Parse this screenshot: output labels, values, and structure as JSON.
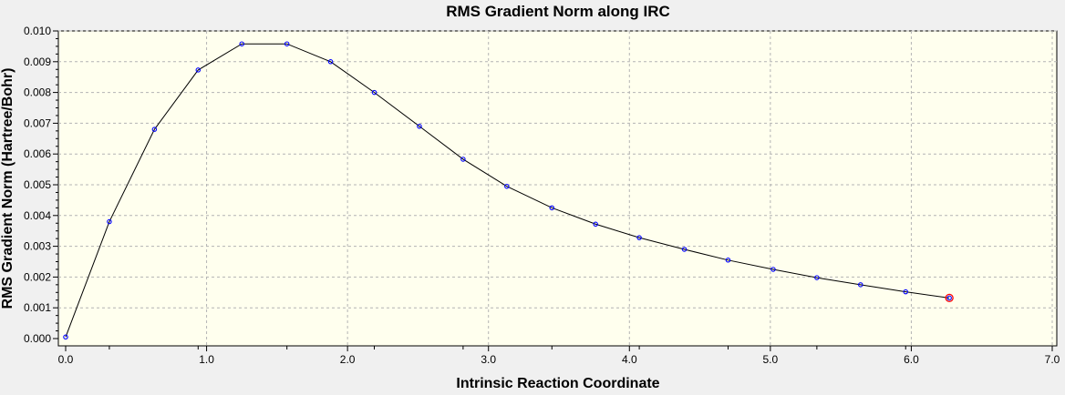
{
  "chart_data": {
    "type": "line",
    "title": "RMS Gradient Norm along IRC",
    "xlabel": "Intrinsic Reaction Coordinate",
    "ylabel": "RMS Gradient Norm (Hartree/Bohr)",
    "xlim": [
      0.0,
      7.0
    ],
    "ylim": [
      0.0,
      0.01
    ],
    "x_ticks": [
      "0.0",
      "1.0",
      "2.0",
      "3.0",
      "4.0",
      "5.0",
      "6.0",
      "7.0"
    ],
    "y_ticks": [
      "0.000",
      "0.001",
      "0.002",
      "0.003",
      "0.004",
      "0.005",
      "0.006",
      "0.007",
      "0.008",
      "0.009",
      "0.010"
    ],
    "grid": true,
    "series": [
      {
        "x": [
          0.0,
          0.31,
          0.63,
          0.94,
          1.25,
          1.57,
          1.88,
          2.19,
          2.51,
          2.82,
          3.13,
          3.45,
          3.76,
          4.07,
          4.39,
          4.7,
          5.02,
          5.33,
          5.64,
          5.96,
          6.27
        ],
        "y": [
          5e-05,
          0.0038,
          0.0068,
          0.00873,
          0.00958,
          0.00958,
          0.009,
          0.008,
          0.0069,
          0.00583,
          0.00495,
          0.00425,
          0.00372,
          0.00328,
          0.0029,
          0.00255,
          0.00225,
          0.00198,
          0.00175,
          0.00152,
          0.00132
        ]
      }
    ],
    "highlight_last_point": true,
    "colors": {
      "line": "#000000",
      "marker": "#0000ff",
      "highlight": "#ff0000",
      "plot_background": "#ffffee",
      "grid": "#b4b4b4"
    }
  }
}
